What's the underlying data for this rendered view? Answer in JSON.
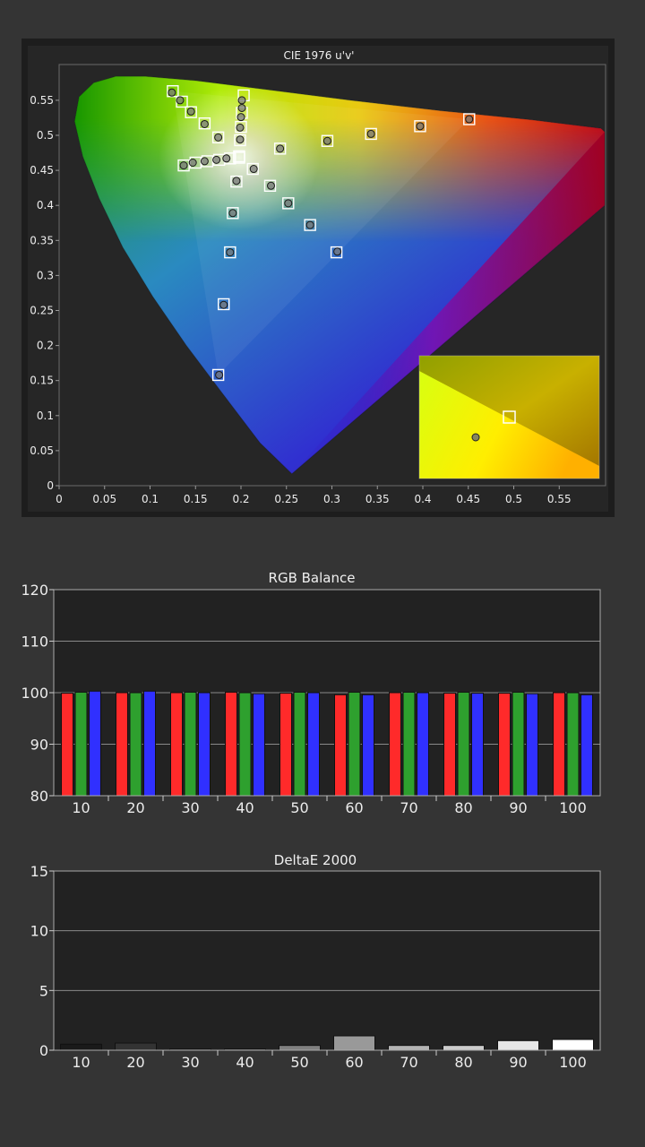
{
  "chart_data": [
    {
      "type": "scatter",
      "title": "CIE 1976 u'v'",
      "x_ticks": [
        "0",
        "0.05",
        "0.1",
        "0.15",
        "0.2",
        "0.25",
        "0.3",
        "0.35",
        "0.4",
        "0.45",
        "0.5",
        "0.55"
      ],
      "y_ticks": [
        "0",
        "0.05",
        "0.1",
        "0.15",
        "0.2",
        "0.25",
        "0.3",
        "0.35",
        "0.4",
        "0.45",
        "0.5",
        "0.55"
      ],
      "xlim": [
        0,
        0.6
      ],
      "ylim": [
        0,
        0.6
      ],
      "gamut_triangle": [
        [
          0.451,
          0.523
        ],
        [
          0.125,
          0.563
        ],
        [
          0.175,
          0.158
        ]
      ],
      "targets": [
        [
          0.451,
          0.523
        ],
        [
          0.397,
          0.513
        ],
        [
          0.343,
          0.502
        ],
        [
          0.295,
          0.492
        ],
        [
          0.243,
          0.481
        ],
        [
          0.125,
          0.563
        ],
        [
          0.135,
          0.548
        ],
        [
          0.145,
          0.533
        ],
        [
          0.16,
          0.517
        ],
        [
          0.175,
          0.497
        ],
        [
          0.175,
          0.158
        ],
        [
          0.181,
          0.259
        ],
        [
          0.188,
          0.333
        ],
        [
          0.191,
          0.389
        ],
        [
          0.195,
          0.434
        ],
        [
          0.203,
          0.557
        ],
        [
          0.201,
          0.532
        ],
        [
          0.2,
          0.512
        ],
        [
          0.199,
          0.493
        ],
        [
          0.198,
          0.47
        ],
        [
          0.305,
          0.333
        ],
        [
          0.276,
          0.372
        ],
        [
          0.252,
          0.403
        ],
        [
          0.232,
          0.428
        ],
        [
          0.213,
          0.452
        ],
        [
          0.137,
          0.457
        ],
        [
          0.15,
          0.461
        ],
        [
          0.163,
          0.463
        ],
        [
          0.176,
          0.465
        ],
        [
          0.188,
          0.467
        ]
      ],
      "measured": [
        [
          0.451,
          0.523
        ],
        [
          0.397,
          0.513
        ],
        [
          0.343,
          0.502
        ],
        [
          0.295,
          0.492
        ],
        [
          0.243,
          0.481
        ],
        [
          0.124,
          0.561
        ],
        [
          0.133,
          0.55
        ],
        [
          0.145,
          0.534
        ],
        [
          0.16,
          0.516
        ],
        [
          0.175,
          0.497
        ],
        [
          0.176,
          0.158
        ],
        [
          0.181,
          0.258
        ],
        [
          0.188,
          0.333
        ],
        [
          0.191,
          0.389
        ],
        [
          0.195,
          0.435
        ],
        [
          0.201,
          0.55
        ],
        [
          0.201,
          0.539
        ],
        [
          0.2,
          0.526
        ],
        [
          0.199,
          0.511
        ],
        [
          0.199,
          0.494
        ],
        [
          0.306,
          0.334
        ],
        [
          0.276,
          0.372
        ],
        [
          0.252,
          0.403
        ],
        [
          0.233,
          0.428
        ],
        [
          0.214,
          0.452
        ],
        [
          0.137,
          0.457
        ],
        [
          0.147,
          0.461
        ],
        [
          0.16,
          0.463
        ],
        [
          0.173,
          0.465
        ],
        [
          0.184,
          0.467
        ]
      ],
      "white_target": [
        0.198,
        0.468
      ],
      "inset": {
        "target": [
          0.5,
          0.5
        ],
        "measured": [
          0.4,
          0.36
        ]
      }
    },
    {
      "type": "bar",
      "title": "RGB Balance",
      "categories": [
        "10",
        "20",
        "30",
        "40",
        "50",
        "60",
        "70",
        "80",
        "90",
        "100"
      ],
      "series": [
        {
          "color": "#ff2a2a",
          "values": [
            99.9,
            100.0,
            100.0,
            100.1,
            99.9,
            99.6,
            100.0,
            99.9,
            99.9,
            100.0
          ]
        },
        {
          "color": "#2ea02e",
          "values": [
            100.1,
            100.0,
            100.1,
            100.0,
            100.1,
            100.1,
            100.1,
            100.1,
            100.1,
            100.0
          ]
        },
        {
          "color": "#3030ff",
          "values": [
            100.3,
            100.3,
            100.0,
            99.8,
            100.0,
            99.6,
            100.0,
            99.9,
            99.8,
            99.6
          ]
        }
      ],
      "ylim": [
        80,
        120
      ],
      "y_ticks": [
        "80",
        "90",
        "100",
        "110",
        "120"
      ]
    },
    {
      "type": "bar",
      "title": "DeltaE 2000",
      "categories": [
        "10",
        "20",
        "30",
        "40",
        "50",
        "60",
        "70",
        "80",
        "90",
        "100"
      ],
      "values": [
        0.5,
        0.6,
        0.1,
        0.1,
        0.4,
        1.2,
        0.4,
        0.4,
        0.8,
        0.9
      ],
      "colors": [
        "#1a1a1a",
        "#333333",
        "#4d4d4d",
        "#666666",
        "#808080",
        "#999999",
        "#b3b3b3",
        "#cccccc",
        "#e6e6e6",
        "#ffffff"
      ],
      "ylim": [
        0,
        15
      ],
      "y_ticks": [
        "0",
        "5",
        "10",
        "15"
      ]
    }
  ]
}
